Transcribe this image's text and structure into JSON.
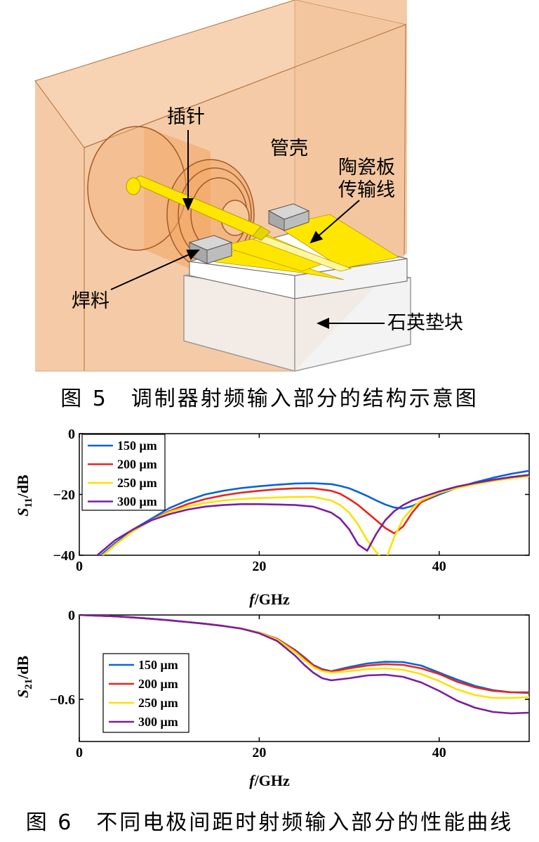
{
  "figure5": {
    "caption": "图 5　调制器射频输入部分的结构示意图",
    "labels": {
      "pin": "插针",
      "housing": "管壳",
      "ceramic_line_1": "陶瓷板",
      "ceramic_line_2": "传输线",
      "solder": "焊料",
      "quartz_block": "石英垫块"
    },
    "colors": {
      "housing": "#f5cba7",
      "gold": "#ffe600",
      "outline": "#b0703a"
    }
  },
  "figure6": {
    "caption": "图 6　不同电极间距时射频输入部分的性能曲线",
    "xlabel_italic": "f",
    "xlabel_unit": "/GHz"
  },
  "chart_data": [
    {
      "type": "line",
      "ylabel_symbol": "S",
      "ylabel_sub": "11",
      "ylabel_unit": "/dB",
      "xlim": [
        0,
        50
      ],
      "ylim": [
        -40,
        0
      ],
      "xticks": [
        0,
        20,
        40
      ],
      "yticks": [
        0,
        -20,
        -40
      ],
      "legend_position": "top-left",
      "x": [
        0,
        2,
        4,
        6,
        8,
        10,
        12,
        14,
        16,
        18,
        20,
        22,
        24,
        26,
        28,
        29,
        30,
        31,
        32,
        33,
        34,
        35,
        36,
        37,
        38,
        40,
        42,
        44,
        46,
        48,
        50
      ],
      "series": [
        {
          "name": "150 μm",
          "color": "#0a64d8",
          "values": [
            -45,
            -41,
            -36,
            -31.5,
            -28,
            -24.5,
            -22,
            -20,
            -18.8,
            -17.9,
            -17.3,
            -16.8,
            -16.4,
            -16.3,
            -16.6,
            -17.2,
            -18,
            -19.2,
            -20.5,
            -22,
            -23.3,
            -24.3,
            -24.6,
            -23.8,
            -22.5,
            -20,
            -17.8,
            -16,
            -14.5,
            -13.2,
            -12.2
          ]
        },
        {
          "name": "200 μm",
          "color": "#e8251c",
          "values": [
            -45,
            -41.5,
            -36.5,
            -32,
            -28.5,
            -25.5,
            -23.2,
            -21.5,
            -20.3,
            -19.4,
            -18.8,
            -18.3,
            -18,
            -18,
            -18.8,
            -19.8,
            -21.5,
            -23.5,
            -26,
            -28.5,
            -31,
            -32.8,
            -30.5,
            -26,
            -22.5,
            -19.5,
            -17.8,
            -16.3,
            -15.2,
            -14.3,
            -13.6
          ]
        },
        {
          "name": "250 μm",
          "color": "#ffe000",
          "values": [
            -45,
            -41.5,
            -36.5,
            -32,
            -28.5,
            -25.8,
            -24,
            -22.8,
            -22,
            -21.5,
            -21.2,
            -21,
            -20.8,
            -20.8,
            -22,
            -23.5,
            -26,
            -30,
            -35,
            -39,
            -42,
            -34,
            -28,
            -24.5,
            -22,
            -19.5,
            -17.9,
            -16.6,
            -15.6,
            -14.7,
            -14
          ]
        },
        {
          "name": "300 μm",
          "color": "#7a1ea1",
          "values": [
            -44,
            -40,
            -35,
            -31.5,
            -28.5,
            -26.5,
            -25,
            -24,
            -23.5,
            -23.2,
            -23.2,
            -23.3,
            -23.5,
            -24,
            -26,
            -28,
            -31.5,
            -36.5,
            -38.5,
            -33,
            -28.5,
            -25.5,
            -23.5,
            -22,
            -21,
            -19,
            -17.4,
            -16.2,
            -15.2,
            -14.3,
            -13.6
          ]
        }
      ]
    },
    {
      "type": "line",
      "ylabel_symbol": "S",
      "ylabel_sub": "21",
      "ylabel_unit": "/dB",
      "xlim": [
        0,
        50
      ],
      "ylim": [
        -0.9,
        0
      ],
      "xticks": [
        0,
        20,
        40
      ],
      "yticks": [
        0,
        -0.6
      ],
      "legend_position": "bottom-left",
      "x": [
        0,
        2,
        4,
        6,
        8,
        10,
        12,
        14,
        16,
        18,
        20,
        22,
        24,
        25,
        26,
        27,
        28,
        30,
        32,
        34,
        36,
        38,
        40,
        42,
        44,
        46,
        48,
        50
      ],
      "series": [
        {
          "name": "150 μm",
          "color": "#0a64d8",
          "values": [
            0,
            -0.005,
            -0.01,
            -0.018,
            -0.027,
            -0.038,
            -0.05,
            -0.063,
            -0.078,
            -0.097,
            -0.125,
            -0.17,
            -0.25,
            -0.3,
            -0.355,
            -0.385,
            -0.4,
            -0.37,
            -0.345,
            -0.333,
            -0.335,
            -0.36,
            -0.41,
            -0.46,
            -0.505,
            -0.535,
            -0.55,
            -0.555
          ]
        },
        {
          "name": "200 μm",
          "color": "#e8251c",
          "values": [
            0,
            -0.005,
            -0.01,
            -0.018,
            -0.027,
            -0.038,
            -0.05,
            -0.063,
            -0.078,
            -0.097,
            -0.125,
            -0.17,
            -0.255,
            -0.305,
            -0.36,
            -0.39,
            -0.403,
            -0.38,
            -0.36,
            -0.35,
            -0.355,
            -0.38,
            -0.42,
            -0.475,
            -0.515,
            -0.54,
            -0.55,
            -0.55
          ]
        },
        {
          "name": "250 μm",
          "color": "#ffe000",
          "values": [
            0,
            -0.005,
            -0.01,
            -0.018,
            -0.027,
            -0.038,
            -0.05,
            -0.063,
            -0.078,
            -0.097,
            -0.125,
            -0.175,
            -0.265,
            -0.32,
            -0.37,
            -0.4,
            -0.41,
            -0.4,
            -0.385,
            -0.38,
            -0.39,
            -0.42,
            -0.47,
            -0.53,
            -0.57,
            -0.59,
            -0.59,
            -0.585
          ]
        },
        {
          "name": "300 μm",
          "color": "#7a1ea1",
          "values": [
            0,
            -0.005,
            -0.01,
            -0.018,
            -0.027,
            -0.038,
            -0.05,
            -0.063,
            -0.078,
            -0.097,
            -0.13,
            -0.185,
            -0.29,
            -0.355,
            -0.41,
            -0.45,
            -0.465,
            -0.45,
            -0.43,
            -0.425,
            -0.44,
            -0.48,
            -0.54,
            -0.61,
            -0.66,
            -0.69,
            -0.7,
            -0.695
          ]
        }
      ]
    }
  ]
}
